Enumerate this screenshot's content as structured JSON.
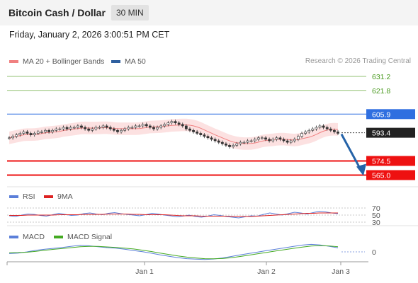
{
  "header": {
    "title": "Bitcoin Cash / Dollar",
    "timeframe": "30 MIN"
  },
  "timestamp": "Friday, January 2, 2026 3:00:51 PM CET",
  "main_legend": [
    {
      "label": "MA 20 + Bollinger Bands",
      "color": "#f08080"
    },
    {
      "label": "MA 50",
      "color": "#2e5f9f"
    }
  ],
  "credit": "Research © 2026 Trading Central",
  "rsi_legend": [
    {
      "label": "RSI",
      "color": "#5b7fd9"
    },
    {
      "label": "9MA",
      "color": "#dd2222"
    }
  ],
  "macd_legend": [
    {
      "label": "MACD",
      "color": "#5b7fd9"
    },
    {
      "label": "MACD Signal",
      "color": "#44aa22"
    }
  ],
  "chart_data": {
    "type": "candlestick",
    "price_scale": [
      560,
      635
    ],
    "levels": [
      {
        "value": 631.2,
        "label": "631.2",
        "style": "thin",
        "color": "#90c070",
        "text_color": "#4a9a20"
      },
      {
        "value": 621.8,
        "label": "621.8",
        "style": "thin",
        "color": "#90c070",
        "text_color": "#4a9a20"
      },
      {
        "value": 605.9,
        "label": "605.9",
        "style": "tag",
        "color": "#2f6fe0"
      },
      {
        "value": 593.4,
        "label": "593.4",
        "style": "tag",
        "color": "#222222"
      },
      {
        "value": 574.5,
        "label": "574.5",
        "style": "tag",
        "color": "#ee1111"
      },
      {
        "value": 565.0,
        "label": "565.0",
        "style": "tag",
        "color": "#ee1111"
      }
    ],
    "close_prices": [
      590,
      591,
      592,
      593,
      594,
      593,
      592,
      593,
      594,
      594,
      595,
      594,
      595,
      596,
      596,
      597,
      596,
      597,
      597,
      598,
      597,
      596,
      595,
      596,
      597,
      597,
      598,
      597,
      596,
      595,
      594,
      595,
      596,
      597,
      597,
      598,
      598,
      599,
      598,
      597,
      596,
      597,
      598,
      599,
      600,
      601,
      600,
      599,
      598,
      596,
      595,
      594,
      593,
      592,
      591,
      590,
      589,
      588,
      587,
      586,
      585,
      584,
      585,
      586,
      587,
      587,
      588,
      588,
      589,
      590,
      590,
      589,
      588,
      589,
      590,
      589,
      588,
      587,
      588,
      589,
      591,
      593,
      594,
      595,
      596,
      597,
      598,
      597,
      596,
      595,
      594,
      593
    ],
    "forecast": {
      "from": 593.4,
      "to": 565.0
    },
    "rsi": {
      "scale_labels": [
        "70",
        "50",
        "30"
      ],
      "rsi": [
        48,
        46,
        50,
        53,
        52,
        49,
        47,
        51,
        55,
        52,
        49,
        50,
        54,
        56,
        53,
        51,
        55,
        57,
        54,
        52,
        50,
        48,
        51,
        55,
        53,
        50,
        48,
        45,
        47,
        50,
        46,
        44,
        47,
        51,
        49,
        46,
        44,
        42,
        45,
        48,
        47,
        52,
        56,
        53,
        50,
        54,
        58,
        56,
        53,
        57,
        61,
        59,
        56,
        54
      ],
      "ma9": [
        49,
        49,
        49,
        50,
        50,
        50,
        50,
        50,
        51,
        51,
        51,
        51,
        52,
        52,
        52,
        52,
        53,
        53,
        53,
        53,
        52,
        52,
        51,
        51,
        51,
        51,
        50,
        49,
        48,
        48,
        48,
        47,
        47,
        47,
        47,
        47,
        46,
        46,
        46,
        46,
        47,
        48,
        49,
        50,
        51,
        52,
        53,
        54,
        55,
        55,
        56,
        56,
        56,
        56
      ]
    },
    "macd": {
      "zero_label": "0",
      "macd": [
        -1.0,
        -0.7,
        0.0,
        0.9,
        1.6,
        2.1,
        2.6,
        3.3,
        3.9,
        3.6,
        3.0,
        2.5,
        2.2,
        1.6,
        0.8,
        0.1,
        -0.8,
        -1.8,
        -2.6,
        -3.4,
        -4.0,
        -4.3,
        -4.5,
        -4.2,
        -3.6,
        -2.7,
        -1.8,
        -0.9,
        -0.1,
        0.8,
        1.6,
        2.4,
        3.2,
        4.0,
        4.4,
        4.1,
        3.3,
        2.4
      ],
      "signal": [
        -0.5,
        -0.4,
        -0.2,
        0.3,
        0.9,
        1.5,
        2.0,
        2.5,
        3.0,
        3.2,
        3.2,
        2.9,
        2.6,
        2.2,
        1.7,
        1.0,
        0.2,
        -0.7,
        -1.6,
        -2.4,
        -3.1,
        -3.6,
        -4.0,
        -4.1,
        -3.9,
        -3.4,
        -2.7,
        -1.9,
        -1.1,
        -0.3,
        0.5,
        1.3,
        2.1,
        2.8,
        3.4,
        3.7,
        3.5,
        3.0
      ]
    },
    "x_labels": [
      "Jan 1",
      "Jan 2",
      "Jan 3"
    ]
  }
}
